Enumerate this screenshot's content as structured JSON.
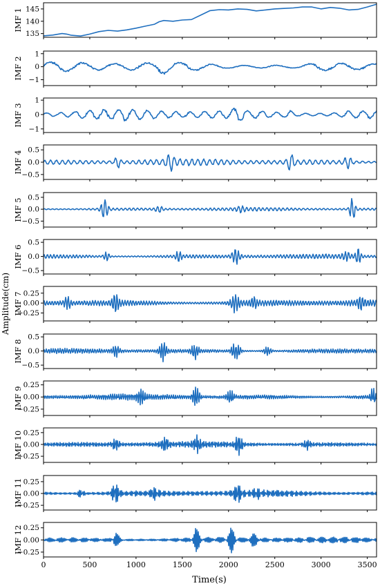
{
  "chart_data": {
    "type": "line",
    "xlabel": "Time(s)",
    "ylabel": "Amplitude(cm)",
    "xlim": [
      0,
      3600
    ],
    "x_ticks": [
      "0",
      "500",
      "1000",
      "1500",
      "2000",
      "2500",
      "3000",
      "3500"
    ],
    "x_tick_values": [
      0,
      500,
      1000,
      1500,
      2000,
      2500,
      3000,
      3500
    ],
    "line_color": "#1f6fbf",
    "panels": [
      {
        "name": "IMF 1",
        "ylim": [
          133.5,
          147.5
        ],
        "ticks": [
          135,
          140,
          145
        ],
        "tick_labels": [
          "135",
          "140",
          "145"
        ],
        "amp": 0,
        "freq": 0,
        "trend": [
          [
            0,
            134.1
          ],
          [
            100,
            134.4
          ],
          [
            200,
            135.0
          ],
          [
            250,
            134.8
          ],
          [
            300,
            134.3
          ],
          [
            400,
            134.0
          ],
          [
            500,
            134.8
          ],
          [
            600,
            135.8
          ],
          [
            700,
            136.3
          ],
          [
            800,
            136.0
          ],
          [
            900,
            136.5
          ],
          [
            1000,
            137.2
          ],
          [
            1100,
            138.0
          ],
          [
            1200,
            138.8
          ],
          [
            1250,
            139.8
          ],
          [
            1300,
            140.3
          ],
          [
            1400,
            140.0
          ],
          [
            1500,
            140.5
          ],
          [
            1600,
            140.7
          ],
          [
            1700,
            142.5
          ],
          [
            1800,
            144.3
          ],
          [
            1900,
            144.7
          ],
          [
            2000,
            144.6
          ],
          [
            2100,
            145.0
          ],
          [
            2200,
            144.8
          ],
          [
            2300,
            144.2
          ],
          [
            2400,
            144.6
          ],
          [
            2500,
            145.0
          ],
          [
            2600,
            145.2
          ],
          [
            2700,
            145.4
          ],
          [
            2800,
            145.8
          ],
          [
            2900,
            145.8
          ],
          [
            3000,
            145.0
          ],
          [
            3100,
            145.6
          ],
          [
            3200,
            145.3
          ],
          [
            3300,
            144.6
          ],
          [
            3400,
            144.8
          ],
          [
            3500,
            145.8
          ],
          [
            3600,
            146.9
          ]
        ],
        "bursts": []
      },
      {
        "name": "IMF 2",
        "ylim": [
          -1.45,
          1.2
        ],
        "ticks": [
          1,
          0,
          -1
        ],
        "tick_labels": [
          "1",
          "0",
          "−1"
        ],
        "amp": 0.45,
        "freq": 0.02,
        "bursts": [
          [
            1300,
            1.5,
            60
          ],
          [
            2700,
            0.5,
            150
          ]
        ]
      },
      {
        "name": "IMF 3",
        "ylim": [
          -1.25,
          1.15
        ],
        "ticks": [
          1,
          0,
          -1
        ],
        "tick_labels": [
          "1",
          "0",
          "−1"
        ],
        "amp": 0.4,
        "freq": 0.045,
        "bursts": [
          [
            900,
            1.4,
            40
          ],
          [
            2100,
            1.6,
            60
          ],
          [
            2650,
            1.5,
            45
          ],
          [
            3300,
            1.2,
            70
          ]
        ]
      },
      {
        "name": "IMF 4",
        "ylim": [
          -0.7,
          0.7
        ],
        "ticks": [
          0.5,
          0,
          -0.5
        ],
        "tick_labels": [
          "0.5",
          "0.0",
          "−0.5"
        ],
        "amp": 0.15,
        "freq": 0.11,
        "bursts": [
          [
            800,
            2.5,
            30
          ],
          [
            1370,
            2.8,
            35
          ],
          [
            2670,
            3.0,
            35
          ],
          [
            3290,
            2.6,
            40
          ]
        ]
      },
      {
        "name": "IMF 5",
        "ylim": [
          -0.75,
          0.7
        ],
        "ticks": [
          0.5,
          0,
          -0.5
        ],
        "tick_labels": [
          "0.5",
          "0.0",
          "−0.5"
        ],
        "amp": 0.08,
        "freq": 0.16,
        "bursts": [
          [
            660,
            6.0,
            40
          ],
          [
            1250,
            2.5,
            40
          ],
          [
            2130,
            2.5,
            40
          ],
          [
            3340,
            7.5,
            30
          ]
        ]
      },
      {
        "name": "IMF 6",
        "ylim": [
          -0.62,
          0.6
        ],
        "ticks": [
          0.5,
          0,
          -0.5
        ],
        "tick_labels": [
          "0.5",
          "0.0",
          "−0.5"
        ],
        "amp": 0.09,
        "freq": 0.2,
        "bursts": [
          [
            680,
            2.8,
            30
          ],
          [
            1460,
            3.2,
            30
          ],
          [
            2080,
            4.5,
            40
          ],
          [
            3270,
            2.8,
            40
          ],
          [
            3400,
            4.0,
            30
          ]
        ]
      },
      {
        "name": "IMF 7",
        "ylim": [
          -0.45,
          0.42
        ],
        "ticks": [
          0.25,
          0,
          -0.25
        ],
        "tick_labels": [
          "0.25",
          "0.00",
          "−0.25"
        ],
        "amp": 0.1,
        "freq": 0.24,
        "bursts": [
          [
            260,
            2.5,
            35
          ],
          [
            780,
            3.0,
            40
          ],
          [
            2070,
            3.0,
            45
          ],
          [
            2270,
            2.2,
            40
          ],
          [
            3430,
            2.5,
            35
          ]
        ]
      },
      {
        "name": "IMF 8",
        "ylim": [
          -0.62,
          0.6
        ],
        "ticks": [
          0.5,
          0,
          -0.5
        ],
        "tick_labels": [
          "0.5",
          "0.0",
          "−0.5"
        ],
        "amp": 0.1,
        "freq": 0.28,
        "bursts": [
          [
            780,
            3.0,
            40
          ],
          [
            1290,
            4.5,
            40
          ],
          [
            1640,
            3.5,
            40
          ],
          [
            2080,
            4.5,
            45
          ],
          [
            2420,
            2.5,
            40
          ]
        ]
      },
      {
        "name": "IMF 9",
        "ylim": [
          -0.38,
          0.33
        ],
        "ticks": [
          0.25,
          0,
          -0.25
        ],
        "tick_labels": [
          "0.25",
          "0.00",
          "−0.25"
        ],
        "amp": 0.07,
        "freq": 0.32,
        "bursts": [
          [
            1050,
            3.0,
            40
          ],
          [
            1650,
            4.5,
            35
          ],
          [
            2020,
            3.0,
            40
          ],
          [
            3560,
            3.5,
            25
          ]
        ]
      },
      {
        "name": "IMF 10",
        "ylim": [
          -0.38,
          0.35
        ],
        "ticks": [
          0.25,
          0,
          -0.25
        ],
        "tick_labels": [
          "0.25",
          "0.00",
          "−0.25"
        ],
        "amp": 0.07,
        "freq": 0.36,
        "bursts": [
          [
            780,
            2.5,
            40
          ],
          [
            1310,
            2.8,
            40
          ],
          [
            1660,
            3.0,
            35
          ],
          [
            2110,
            3.8,
            40
          ],
          [
            2850,
            2.3,
            40
          ]
        ]
      },
      {
        "name": "IMF 11",
        "ylim": [
          -0.35,
          0.38
        ],
        "ticks": [
          0.25,
          0,
          -0.25
        ],
        "tick_labels": [
          "0.25",
          "0.00",
          "−0.25"
        ],
        "amp": 0.08,
        "freq": 0.4,
        "bursts": [
          [
            400,
            2.0,
            40
          ],
          [
            780,
            3.5,
            40
          ],
          [
            1200,
            2.3,
            40
          ],
          [
            2100,
            3.0,
            45
          ],
          [
            2300,
            2.0,
            40
          ]
        ]
      },
      {
        "name": "IMF 12",
        "ylim": [
          -0.35,
          0.36
        ],
        "ticks": [
          0.25,
          0,
          -0.25
        ],
        "tick_labels": [
          "0.25",
          "0.00",
          "−0.25"
        ],
        "amp": 0.07,
        "freq": 0.44,
        "bursts": [
          [
            780,
            3.0,
            40
          ],
          [
            1650,
            4.5,
            35
          ],
          [
            2030,
            4.3,
            35
          ],
          [
            2270,
            2.5,
            40
          ]
        ]
      }
    ]
  }
}
